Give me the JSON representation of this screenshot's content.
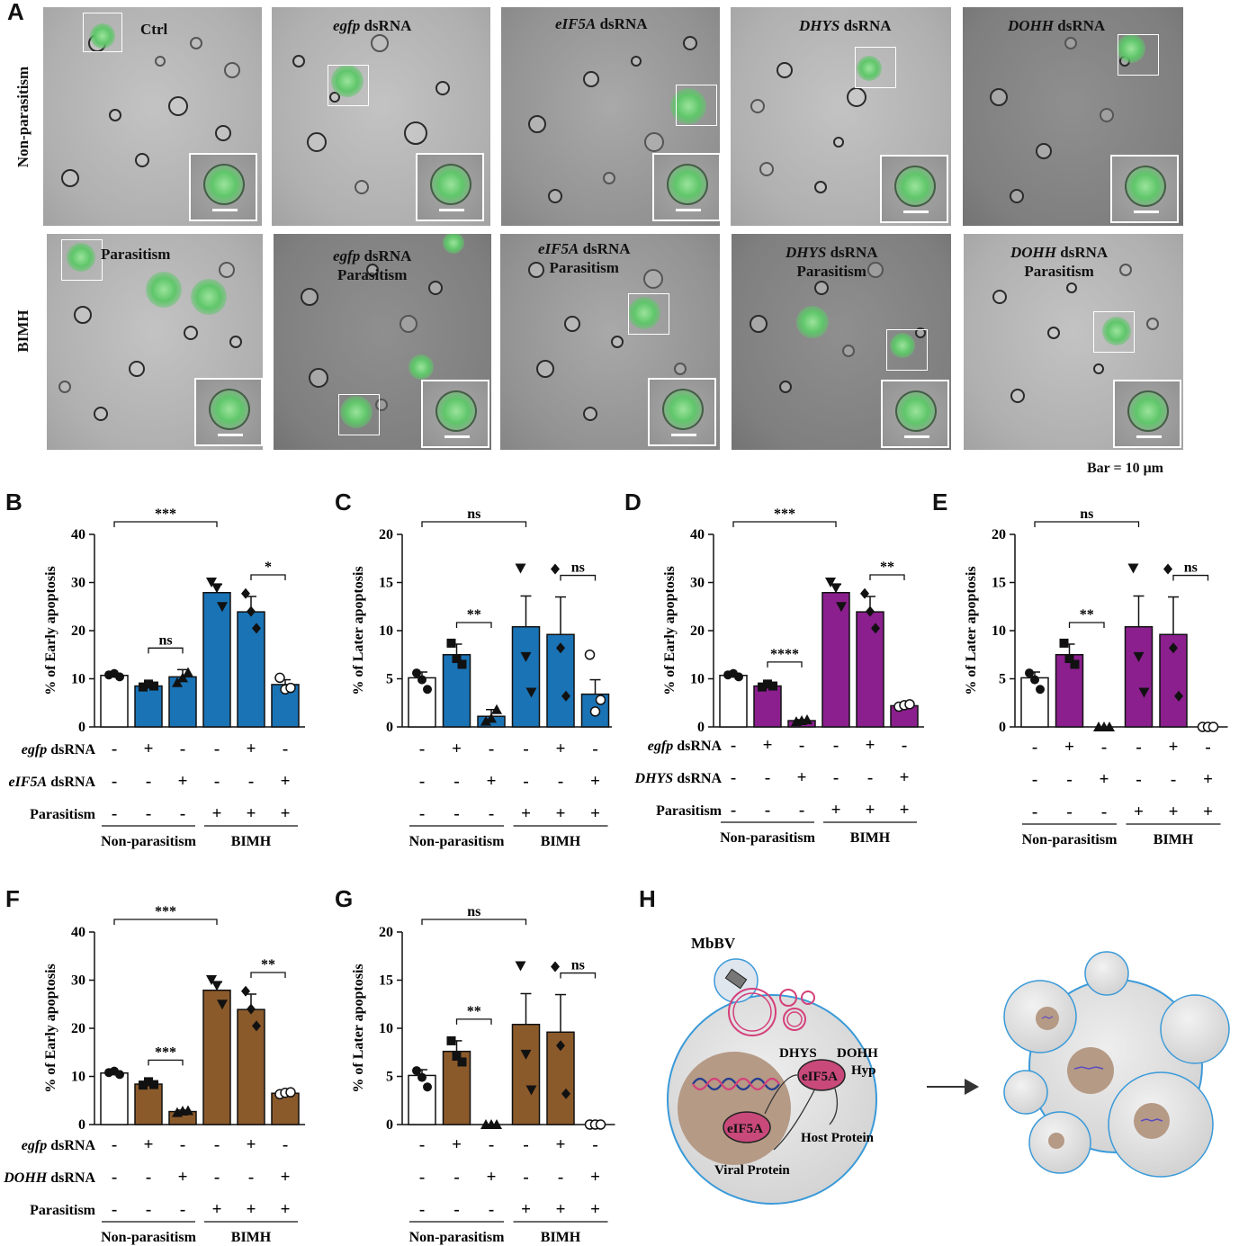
{
  "figure": {
    "panel_labels": [
      "A",
      "B",
      "C",
      "D",
      "E",
      "F",
      "G",
      "H"
    ],
    "panelA": {
      "row_labels": [
        "Non-parasitism",
        "BIMH"
      ],
      "row1_titles": [
        {
          "italic": "",
          "rest": "Ctrl"
        },
        {
          "italic": "egfp",
          "rest": " dsRNA"
        },
        {
          "italic": "eIF5A",
          "rest": " dsRNA"
        },
        {
          "italic": "DHYS",
          "rest": " dsRNA"
        },
        {
          "italic": "DOHH",
          "rest": " dsRNA"
        }
      ],
      "row2_titles": [
        {
          "italic": "",
          "rest": "Parasitism",
          "line2": ""
        },
        {
          "italic": "egfp",
          "rest": " dsRNA",
          "line2": "Parasitism"
        },
        {
          "italic": "eIF5A",
          "rest": " dsRNA",
          "line2": "Parasitism"
        },
        {
          "italic": "DHYS",
          "rest": " dsRNA",
          "line2": "Parasitism"
        },
        {
          "italic": "DOHH",
          "rest": " dsRNA",
          "line2": "Parasitism"
        }
      ],
      "scale_text": "Bar = 10 μm"
    },
    "colors": {
      "blue": "#1a73b5",
      "purple": "#8b1f8e",
      "brown": "#8b5a2b",
      "green_fluor": "#5fc66a",
      "nucleus": "#b59a86",
      "eif5a": "#c8497a",
      "cell_outline": "#3a9ad9"
    },
    "panelH": {
      "virus": "MbBV",
      "labels": [
        "DHYS",
        "DOHH",
        "eIF5A",
        "Hyp",
        "eIF5A",
        "Host Protein",
        "Viral Protein"
      ]
    }
  },
  "chart_data": [
    {
      "id": "B",
      "type": "bar",
      "ylabel": "% of  Early apoptosis",
      "ylim": [
        0,
        40
      ],
      "yticks": [
        0,
        10,
        20,
        30,
        40
      ],
      "values": [
        10.7,
        8.5,
        10.4,
        27.9,
        23.9,
        8.8
      ],
      "errors": [
        0.4,
        0.5,
        1.5,
        1.7,
        3.2,
        1.0
      ],
      "points": [
        [
          10.8,
          11.1,
          10.4
        ],
        [
          8.3,
          8.9,
          8.5
        ],
        [
          9.2,
          10.2,
          11.3
        ],
        [
          30.1,
          28.9,
          25.0
        ],
        [
          27.7,
          24.0,
          20.5
        ],
        [
          10.2,
          7.8,
          8.1
        ]
      ],
      "colors": [
        "white",
        "blue",
        "blue",
        "blue",
        "blue",
        "blue"
      ],
      "markers": [
        "circle",
        "square",
        "triangle",
        "triangle_down",
        "diamond",
        "circle_open"
      ],
      "factors": [
        {
          "label_italic": "egfp",
          "label_rest": " dsRNA",
          "signs": [
            "-",
            "+",
            "-",
            "-",
            "+",
            "-"
          ]
        },
        {
          "label_italic": "eIF5A",
          "label_rest": " dsRNA",
          "signs": [
            "-",
            "-",
            "+",
            "-",
            "-",
            "+"
          ]
        },
        {
          "label_italic": "",
          "label_rest": "Parasitism",
          "signs": [
            "-",
            "-",
            "-",
            "+",
            "+",
            "+"
          ]
        }
      ],
      "groups": [
        "Non-parasitism",
        "BIMH"
      ],
      "significance": [
        {
          "from": 0,
          "to": 3,
          "label": "***"
        },
        {
          "from": 1,
          "to": 2,
          "label": "ns"
        },
        {
          "from": 4,
          "to": 5,
          "label": "*"
        }
      ]
    },
    {
      "id": "C",
      "type": "bar",
      "ylabel": "% of Later apoptosis",
      "ylim": [
        0,
        20
      ],
      "yticks": [
        0,
        5,
        10,
        15,
        20
      ],
      "values": [
        5.1,
        7.5,
        1.1,
        10.4,
        9.6,
        3.4
      ],
      "errors": [
        0.6,
        1.1,
        0.7,
        3.2,
        3.9,
        1.5
      ],
      "points": [
        [
          5.6,
          4.9,
          3.9
        ],
        [
          8.7,
          7.1,
          6.5
        ],
        [
          0.6,
          0.9,
          1.8
        ],
        [
          16.5,
          7.3,
          3.6
        ],
        [
          16.4,
          8.2,
          3.2
        ],
        [
          7.5,
          1.6,
          2.8
        ]
      ],
      "colors": [
        "white",
        "blue",
        "blue",
        "blue",
        "blue",
        "blue"
      ],
      "markers": [
        "circle",
        "square",
        "triangle",
        "triangle_down",
        "diamond",
        "circle_open"
      ],
      "factors": [
        {
          "label_italic": "",
          "label_rest": "",
          "signs": [
            "-",
            "+",
            "-",
            "-",
            "+",
            "-"
          ]
        },
        {
          "label_italic": "",
          "label_rest": "",
          "signs": [
            "-",
            "-",
            "+",
            "-",
            "-",
            "+"
          ]
        },
        {
          "label_italic": "",
          "label_rest": "",
          "signs": [
            "-",
            "-",
            "-",
            "+",
            "+",
            "+"
          ]
        }
      ],
      "groups": [
        "Non-parasitism",
        "BIMH"
      ],
      "significance": [
        {
          "from": 0,
          "to": 3,
          "label": "ns"
        },
        {
          "from": 1,
          "to": 2,
          "label": "**"
        },
        {
          "from": 4,
          "to": 5,
          "label": "ns"
        }
      ]
    },
    {
      "id": "D",
      "type": "bar",
      "ylabel": "% of  Early apoptosis",
      "ylim": [
        0,
        40
      ],
      "yticks": [
        0,
        10,
        20,
        30,
        40
      ],
      "values": [
        10.7,
        8.5,
        1.3,
        27.9,
        23.9,
        4.4
      ],
      "errors": [
        0.4,
        0.5,
        0.2,
        1.7,
        3.2,
        0.3
      ],
      "points": [
        [
          10.8,
          11.1,
          10.4
        ],
        [
          8.3,
          8.9,
          8.5
        ],
        [
          1.1,
          1.3,
          1.5
        ],
        [
          30.1,
          28.9,
          25.0
        ],
        [
          27.7,
          24.0,
          20.5
        ],
        [
          4.2,
          4.5,
          4.7
        ]
      ],
      "colors": [
        "white",
        "purple",
        "purple",
        "purple",
        "purple",
        "purple"
      ],
      "markers": [
        "circle",
        "square",
        "triangle",
        "triangle_down",
        "diamond",
        "circle_open"
      ],
      "factors": [
        {
          "label_italic": "egfp",
          "label_rest": " dsRNA",
          "signs": [
            "-",
            "+",
            "-",
            "-",
            "+",
            "-"
          ]
        },
        {
          "label_italic": "DHYS",
          "label_rest": " dsRNA",
          "signs": [
            "-",
            "-",
            "+",
            "-",
            "-",
            "+"
          ]
        },
        {
          "label_italic": "",
          "label_rest": "Parasitism",
          "signs": [
            "-",
            "-",
            "-",
            "+",
            "+",
            "+"
          ]
        }
      ],
      "groups": [
        "Non-parasitism",
        "BIMH"
      ],
      "significance": [
        {
          "from": 0,
          "to": 3,
          "label": "***"
        },
        {
          "from": 1,
          "to": 2,
          "label": "****"
        },
        {
          "from": 4,
          "to": 5,
          "label": "**"
        }
      ]
    },
    {
      "id": "E",
      "type": "bar",
      "ylabel": "% of Later apoptosis",
      "ylim": [
        0,
        20
      ],
      "yticks": [
        0,
        5,
        10,
        15,
        20
      ],
      "values": [
        5.1,
        7.5,
        0.0,
        10.4,
        9.6,
        0.0
      ],
      "errors": [
        0.6,
        1.1,
        0.0,
        3.2,
        3.9,
        0.0
      ],
      "points": [
        [
          5.6,
          4.9,
          3.9
        ],
        [
          8.7,
          7.1,
          6.5
        ],
        [
          0,
          0,
          0
        ],
        [
          16.5,
          7.3,
          3.6
        ],
        [
          16.4,
          8.2,
          3.2
        ],
        [
          0,
          0,
          0
        ]
      ],
      "colors": [
        "white",
        "purple",
        "purple",
        "purple",
        "purple",
        "purple"
      ],
      "markers": [
        "circle",
        "square",
        "triangle",
        "triangle_down",
        "diamond",
        "circle_open"
      ],
      "factors": [
        {
          "label_italic": "",
          "label_rest": "",
          "signs": [
            "-",
            "+",
            "-",
            "-",
            "+",
            "-"
          ]
        },
        {
          "label_italic": "",
          "label_rest": "",
          "signs": [
            "-",
            "-",
            "+",
            "-",
            "-",
            "+"
          ]
        },
        {
          "label_italic": "",
          "label_rest": "",
          "signs": [
            "-",
            "-",
            "-",
            "+",
            "+",
            "+"
          ]
        }
      ],
      "groups": [
        "Non-parasitism",
        "BIMH"
      ],
      "significance": [
        {
          "from": 0,
          "to": 3,
          "label": "ns"
        },
        {
          "from": 1,
          "to": 2,
          "label": "**"
        },
        {
          "from": 4,
          "to": 5,
          "label": "ns"
        }
      ]
    },
    {
      "id": "F",
      "type": "bar",
      "ylabel": "% of  Early apoptosis",
      "ylim": [
        0,
        40
      ],
      "yticks": [
        0,
        10,
        20,
        30,
        40
      ],
      "values": [
        10.7,
        8.4,
        2.7,
        27.9,
        23.9,
        6.5
      ],
      "errors": [
        0.4,
        0.5,
        0.3,
        1.7,
        3.2,
        0.3
      ],
      "points": [
        [
          10.8,
          11.1,
          10.4
        ],
        [
          8.2,
          8.9,
          8.3
        ],
        [
          2.5,
          2.8,
          2.9
        ],
        [
          30.1,
          28.9,
          25.0
        ],
        [
          27.7,
          24.0,
          20.5
        ],
        [
          6.3,
          6.6,
          6.7
        ]
      ],
      "colors": [
        "white",
        "brown",
        "brown",
        "brown",
        "brown",
        "brown"
      ],
      "markers": [
        "circle",
        "square",
        "triangle",
        "triangle_down",
        "diamond",
        "circle_open"
      ],
      "factors": [
        {
          "label_italic": "egfp",
          "label_rest": " dsRNA",
          "signs": [
            "-",
            "+",
            "-",
            "-",
            "+",
            "-"
          ]
        },
        {
          "label_italic": "DOHH",
          "label_rest": " dsRNA",
          "signs": [
            "-",
            "-",
            "+",
            "-",
            "-",
            "+"
          ]
        },
        {
          "label_italic": "",
          "label_rest": "Parasitism",
          "signs": [
            "-",
            "-",
            "-",
            "+",
            "+",
            "+"
          ]
        }
      ],
      "groups": [
        "Non-parasitism",
        "BIMH"
      ],
      "significance": [
        {
          "from": 0,
          "to": 3,
          "label": "***"
        },
        {
          "from": 1,
          "to": 2,
          "label": "***"
        },
        {
          "from": 4,
          "to": 5,
          "label": "**"
        }
      ]
    },
    {
      "id": "G",
      "type": "bar",
      "ylabel": "% of Later apoptosis",
      "ylim": [
        0,
        20
      ],
      "yticks": [
        0,
        5,
        10,
        15,
        20
      ],
      "values": [
        5.1,
        7.6,
        0.0,
        10.4,
        9.6,
        0.0
      ],
      "errors": [
        0.6,
        1.1,
        0.0,
        3.2,
        3.9,
        0.0
      ],
      "points": [
        [
          5.6,
          4.9,
          3.9
        ],
        [
          8.7,
          7.1,
          6.5
        ],
        [
          0,
          0,
          0
        ],
        [
          16.5,
          7.3,
          3.6
        ],
        [
          16.4,
          8.2,
          3.2
        ],
        [
          0,
          0,
          0
        ]
      ],
      "colors": [
        "white",
        "brown",
        "brown",
        "brown",
        "brown",
        "brown"
      ],
      "markers": [
        "circle",
        "square",
        "triangle",
        "triangle_down",
        "diamond",
        "circle_open"
      ],
      "factors": [
        {
          "label_italic": "",
          "label_rest": "",
          "signs": [
            "-",
            "+",
            "-",
            "-",
            "+",
            "-"
          ]
        },
        {
          "label_italic": "",
          "label_rest": "",
          "signs": [
            "-",
            "-",
            "+",
            "-",
            "-",
            "+"
          ]
        },
        {
          "label_italic": "",
          "label_rest": "",
          "signs": [
            "-",
            "-",
            "-",
            "+",
            "+",
            "+"
          ]
        }
      ],
      "groups": [
        "Non-parasitism",
        "BIMH"
      ],
      "significance": [
        {
          "from": 0,
          "to": 3,
          "label": "ns"
        },
        {
          "from": 1,
          "to": 2,
          "label": "**"
        },
        {
          "from": 4,
          "to": 5,
          "label": "ns"
        }
      ]
    }
  ]
}
